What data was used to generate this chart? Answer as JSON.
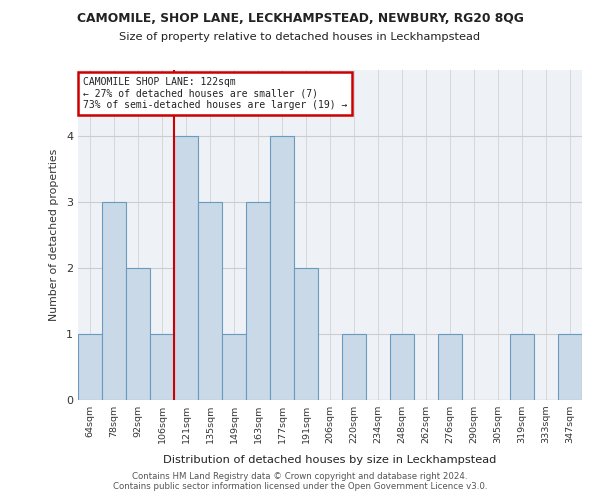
{
  "title": "CAMOMILE, SHOP LANE, LECKHAMPSTEAD, NEWBURY, RG20 8QG",
  "subtitle": "Size of property relative to detached houses in Leckhampstead",
  "xlabel": "Distribution of detached houses by size in Leckhampstead",
  "ylabel": "Number of detached properties",
  "footer_line1": "Contains HM Land Registry data © Crown copyright and database right 2024.",
  "footer_line2": "Contains public sector information licensed under the Open Government Licence v3.0.",
  "bin_labels": [
    "64sqm",
    "78sqm",
    "92sqm",
    "106sqm",
    "121sqm",
    "135sqm",
    "149sqm",
    "163sqm",
    "177sqm",
    "191sqm",
    "206sqm",
    "220sqm",
    "234sqm",
    "248sqm",
    "262sqm",
    "276sqm",
    "290sqm",
    "305sqm",
    "319sqm",
    "333sqm",
    "347sqm"
  ],
  "bar_heights": [
    1,
    3,
    2,
    1,
    4,
    3,
    1,
    3,
    4,
    2,
    0,
    1,
    0,
    1,
    0,
    1,
    0,
    0,
    1,
    0,
    1
  ],
  "bar_color": "#c9d9e8",
  "bar_edge_color": "#6a9bbf",
  "ref_line_bin_index": 4,
  "annotation_text_line1": "CAMOMILE SHOP LANE: 122sqm",
  "annotation_text_line2": "← 27% of detached houses are smaller (7)",
  "annotation_text_line3": "73% of semi-detached houses are larger (19) →",
  "annotation_box_color": "#ffffff",
  "annotation_box_edge_color": "#cc0000",
  "ref_line_color": "#cc0000",
  "ylim": [
    0,
    5
  ],
  "yticks": [
    0,
    1,
    2,
    3,
    4
  ],
  "grid_color": "#cccccc",
  "bg_color": "#eef2f7"
}
